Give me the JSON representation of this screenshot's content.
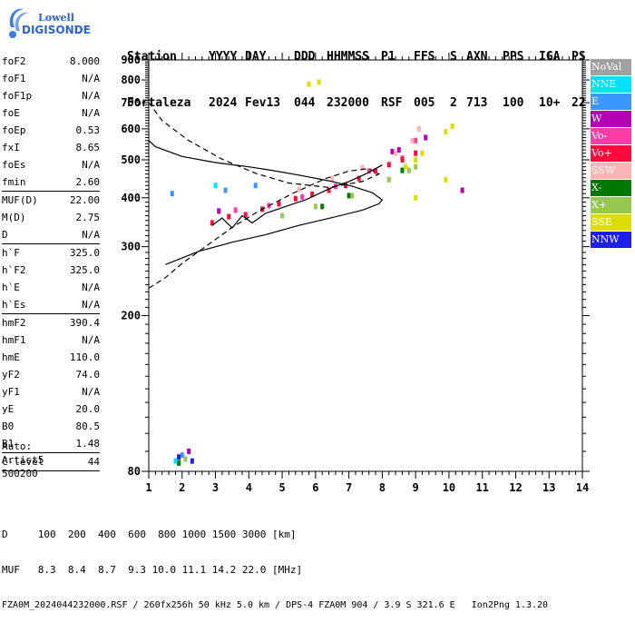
{
  "logo": {
    "line1": "Lowell",
    "line2": "DIGISONDE"
  },
  "header": {
    "labels": [
      "Station",
      "YYYY",
      "DAY",
      "DDD",
      "HHMMSS",
      "P1",
      "FFS",
      "S",
      "AXN",
      "PPS",
      "IGA",
      "PS"
    ],
    "values": [
      "Fortaleza",
      "2024",
      "Fev13",
      "044",
      "232000",
      "RSF",
      "005",
      "2",
      "713",
      "100",
      "10+",
      "22"
    ]
  },
  "params": [
    {
      "name": "foF2",
      "value": "8.000"
    },
    {
      "name": "foF1",
      "value": "N/A"
    },
    {
      "name": "foF1p",
      "value": "N/A"
    },
    {
      "name": "foE",
      "value": "N/A"
    },
    {
      "name": "foEp",
      "value": "0.53"
    },
    {
      "name": "fxI",
      "value": "8.65"
    },
    {
      "name": "foEs",
      "value": "N/A"
    },
    {
      "name": "fmin",
      "value": "2.60",
      "sep": true
    },
    {
      "name": "MUF(D)",
      "value": "22.00"
    },
    {
      "name": "M(D)",
      "value": "2.75"
    },
    {
      "name": "D",
      "value": "N/A",
      "sep": true
    },
    {
      "name": "h`F",
      "value": "325.0"
    },
    {
      "name": "h`F2",
      "value": "325.0"
    },
    {
      "name": "h`E",
      "value": "N/A"
    },
    {
      "name": "h`Es",
      "value": "N/A",
      "sep": true
    },
    {
      "name": "hmF2",
      "value": "390.4"
    },
    {
      "name": "hmF1",
      "value": "N/A"
    },
    {
      "name": "hmE",
      "value": "110.0"
    },
    {
      "name": "yF2",
      "value": "74.0"
    },
    {
      "name": "yF1",
      "value": "N/A"
    },
    {
      "name": "yE",
      "value": "20.0"
    },
    {
      "name": "B0",
      "value": "80.5"
    },
    {
      "name": "B1",
      "value": "1.48",
      "sep": true
    },
    {
      "name": "C-level",
      "value": "44",
      "sep": true
    }
  ],
  "auto": {
    "line1": "Auto:",
    "line2": "Artist5",
    "line3": "500200"
  },
  "footer": {
    "d_row": "D     100  200  400  600  800 1000 1500 3000 [km]",
    "muf_row": "MUF   8.3  8.4  8.7  9.3 10.0 11.1 14.2 22.0 [MHz]",
    "info_row": "FZA0M_2024044232000.RSF / 260fx256h 50 kHz 5.0 km / DPS-4 FZA0M 904 / 3.9 S 321.6 E   Ion2Png 1.3.20"
  },
  "legend": [
    {
      "label": "NoVal",
      "color": "#a0a0a0"
    },
    {
      "label": "NNE",
      "color": "#00e0ff"
    },
    {
      "label": "E",
      "color": "#3c96ff"
    },
    {
      "label": "W",
      "color": "#b400b4"
    },
    {
      "label": "Vo-",
      "color": "#ff3ca8"
    },
    {
      "label": "Vo+",
      "color": "#ff0a3c"
    },
    {
      "label": "SSW",
      "color": "#ffb4b4"
    },
    {
      "label": "X-",
      "color": "#007800"
    },
    {
      "label": "X+",
      "color": "#96c850"
    },
    {
      "label": "SSE",
      "color": "#dcdc00"
    },
    {
      "label": "NNW",
      "color": "#1e1ee6"
    }
  ],
  "chart_data": {
    "type": "scatter",
    "title": "",
    "xlabel": "",
    "ylabel": "",
    "xlim": [
      1,
      14
    ],
    "ylim": [
      80,
      900
    ],
    "y_scale": "log",
    "xticks": [
      1,
      2,
      3,
      4,
      5,
      6,
      7,
      8,
      9,
      10,
      11,
      12,
      13,
      14
    ],
    "yticks": [
      80,
      200,
      300,
      400,
      500,
      600,
      700,
      800,
      900
    ],
    "grid": false,
    "series": [
      {
        "name": "NoVal",
        "color": "#a0a0a0",
        "points": []
      },
      {
        "name": "NNE",
        "color": "#00e0ff",
        "points": [
          [
            1.8,
            85
          ],
          [
            3.0,
            430
          ]
        ]
      },
      {
        "name": "E",
        "color": "#3c96ff",
        "points": [
          [
            1.7,
            410
          ],
          [
            2.0,
            88
          ],
          [
            3.3,
            418
          ],
          [
            4.2,
            430
          ]
        ]
      },
      {
        "name": "W",
        "color": "#b400b4",
        "points": [
          [
            2.2,
            90
          ],
          [
            3.1,
            370
          ],
          [
            8.3,
            525
          ],
          [
            8.5,
            530
          ],
          [
            10.4,
            418
          ],
          [
            9.3,
            570
          ]
        ]
      },
      {
        "name": "Vo-",
        "color": "#ff3ca8",
        "points": [
          [
            3.6,
            372
          ],
          [
            4.6,
            382
          ],
          [
            5.6,
            402
          ],
          [
            6.6,
            428
          ],
          [
            7.6,
            468
          ],
          [
            8.6,
            505
          ],
          [
            9.0,
            560
          ]
        ]
      },
      {
        "name": "Vo+",
        "color": "#ff0a3c",
        "points": [
          [
            2.9,
            345
          ],
          [
            3.4,
            358
          ],
          [
            3.9,
            362
          ],
          [
            4.4,
            374
          ],
          [
            4.9,
            386
          ],
          [
            5.4,
            398
          ],
          [
            5.9,
            408
          ],
          [
            6.4,
            418
          ],
          [
            6.9,
            430
          ],
          [
            7.3,
            448
          ],
          [
            7.8,
            468
          ],
          [
            8.2,
            486
          ],
          [
            8.6,
            500
          ],
          [
            9.0,
            520
          ]
        ]
      },
      {
        "name": "SSW",
        "color": "#ffb4b4",
        "points": [
          [
            5.5,
            420
          ],
          [
            6.5,
            448
          ],
          [
            7.4,
            478
          ],
          [
            8.4,
            520
          ],
          [
            8.9,
            560
          ],
          [
            9.1,
            600
          ]
        ]
      },
      {
        "name": "X-",
        "color": "#007800",
        "points": [
          [
            1.9,
            84
          ],
          [
            6.2,
            380
          ],
          [
            7.0,
            405
          ],
          [
            8.6,
            470
          ]
        ]
      },
      {
        "name": "X+",
        "color": "#96c850",
        "points": [
          [
            2.1,
            86
          ],
          [
            5.0,
            360
          ],
          [
            6.0,
            380
          ],
          [
            7.1,
            405
          ],
          [
            8.2,
            445
          ],
          [
            8.8,
            470
          ],
          [
            9.0,
            480
          ]
        ]
      },
      {
        "name": "SSE",
        "color": "#dcdc00",
        "points": [
          [
            5.8,
            780
          ],
          [
            6.1,
            790
          ],
          [
            8.7,
            480
          ],
          [
            9.0,
            500
          ],
          [
            9.2,
            520
          ],
          [
            9.0,
            400
          ],
          [
            9.9,
            590
          ],
          [
            10.1,
            610
          ],
          [
            9.9,
            445
          ]
        ]
      },
      {
        "name": "NNW",
        "color": "#1e1ee6",
        "points": [
          [
            1.9,
            87
          ],
          [
            2.3,
            85
          ]
        ]
      }
    ],
    "profile": {
      "style": "solid",
      "points": [
        [
          1.5,
          270
        ],
        [
          2.5,
          292
        ],
        [
          3.5,
          308
        ],
        [
          4.5,
          322
        ],
        [
          5.5,
          340
        ],
        [
          6.5,
          356
        ],
        [
          7.4,
          372
        ],
        [
          7.9,
          386
        ],
        [
          8.0,
          395
        ],
        [
          7.7,
          412
        ],
        [
          7.1,
          428
        ],
        [
          6.4,
          442
        ],
        [
          5.5,
          457
        ],
        [
          4.7,
          470
        ],
        [
          4.0,
          480
        ],
        [
          3.0,
          492
        ],
        [
          2.0,
          510
        ],
        [
          1.2,
          540
        ],
        [
          1.0,
          560
        ]
      ]
    },
    "trace": {
      "style": "solid",
      "points": [
        [
          2.9,
          340
        ],
        [
          3.2,
          355
        ],
        [
          3.5,
          335
        ],
        [
          3.8,
          360
        ],
        [
          4.1,
          345
        ],
        [
          4.5,
          365
        ],
        [
          4.9,
          375
        ],
        [
          5.3,
          385
        ],
        [
          5.7,
          395
        ],
        [
          6.1,
          410
        ],
        [
          6.5,
          425
        ],
        [
          7.0,
          440
        ],
        [
          7.5,
          460
        ],
        [
          8.0,
          485
        ]
      ]
    },
    "dashed": {
      "style": "dashed",
      "points": [
        [
          1.0,
          235
        ],
        [
          1.5,
          250
        ],
        [
          2.0,
          272
        ],
        [
          2.7,
          300
        ],
        [
          3.5,
          336
        ],
        [
          4.3,
          370
        ],
        [
          5.3,
          410
        ],
        [
          6.3,
          448
        ],
        [
          7.0,
          468
        ],
        [
          7.6,
          475
        ],
        [
          7.9,
          460
        ],
        [
          7.4,
          440
        ],
        [
          6.4,
          425
        ],
        [
          5.2,
          436
        ],
        [
          4.2,
          462
        ],
        [
          3.2,
          502
        ],
        [
          2.2,
          560
        ],
        [
          1.4,
          630
        ],
        [
          1.0,
          700
        ]
      ]
    }
  }
}
